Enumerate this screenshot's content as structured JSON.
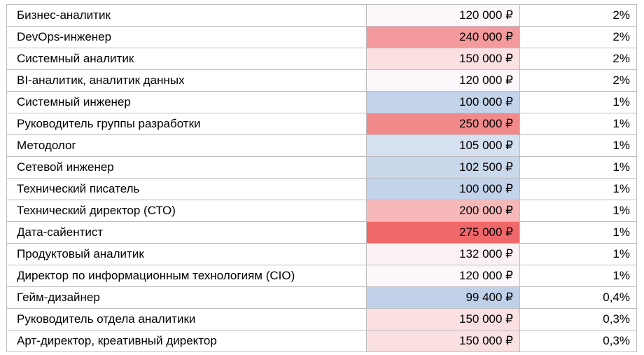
{
  "table": {
    "rows": [
      {
        "role": "Бизнес-аналитик",
        "salary": "120 000 ₽",
        "share": "2%",
        "heat": "#fbf7fb"
      },
      {
        "role": "DevOps-инженер",
        "salary": "240 000 ₽",
        "share": "2%",
        "heat": "#f49a9c"
      },
      {
        "role": "Системный аналитик",
        "salary": "150 000 ₽",
        "share": "2%",
        "heat": "#fbe0e2"
      },
      {
        "role": "BI-аналитик, аналитик данных",
        "salary": "120 000 ₽",
        "share": "2%",
        "heat": "#fbf7fb"
      },
      {
        "role": "Системный инженер",
        "salary": "100 000 ₽",
        "share": "1%",
        "heat": "#c3d3ea"
      },
      {
        "role": "Руководитель группы разработки",
        "salary": "250 000 ₽",
        "share": "1%",
        "heat": "#f2898b"
      },
      {
        "role": "Методолог",
        "salary": "105 000 ₽",
        "share": "1%",
        "heat": "#d5e0f0"
      },
      {
        "role": "Сетевой инженер",
        "salary": "102 500 ₽",
        "share": "1%",
        "heat": "#cad8ec"
      },
      {
        "role": "Технический писатель",
        "salary": "100 000 ₽",
        "share": "1%",
        "heat": "#c3d3ea"
      },
      {
        "role": "Технический директор (СТО)",
        "salary": "200 000 ₽",
        "share": "1%",
        "heat": "#f7b8ba"
      },
      {
        "role": "Дата-сайентист",
        "salary": "275 000 ₽",
        "share": "1%",
        "heat": "#f1686b"
      },
      {
        "role": "Продуктовый аналитик",
        "salary": "132 000 ₽",
        "share": "1%",
        "heat": "#fbf0f2"
      },
      {
        "role": "Директор по информационным технологиям (CIO)",
        "salary": "120 000 ₽",
        "share": "1%",
        "heat": "#fbf7fb"
      },
      {
        "role": "Гейм-дизайнер",
        "salary": "99 400 ₽",
        "share": "0,4%",
        "heat": "#c0d0e9"
      },
      {
        "role": "Руководитель отдела аналитики",
        "salary": "150 000 ₽",
        "share": "0,3%",
        "heat": "#fbe0e2"
      },
      {
        "role": "Арт-директор, креативный директор",
        "salary": "150 000 ₽",
        "share": "0,3%",
        "heat": "#fbe0e2"
      }
    ]
  }
}
